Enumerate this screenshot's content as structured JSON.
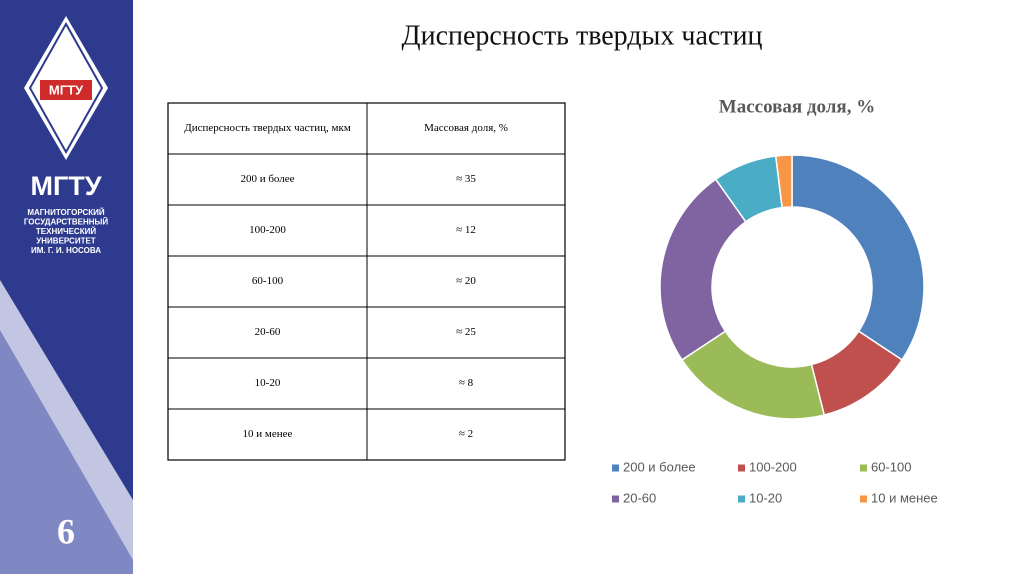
{
  "sidebar": {
    "logo_text": "МГТУ",
    "brand": "МГТУ",
    "university": [
      "МАГНИТОГОРСКИЙ",
      "ГОСУДАРСТВЕННЫЙ",
      "ТЕХНИЧЕСКИЙ",
      "УНИВЕРСИТЕТ",
      "ИМ. Г. И. НОСОВА"
    ],
    "page_number": "6"
  },
  "header": {
    "title": "Дисперсность твердых частиц"
  },
  "table": {
    "columns": [
      "Дисперсность твердых частиц, мкм",
      "Массовая доля, %"
    ],
    "rows": [
      [
        "200 и более",
        "≈ 35"
      ],
      [
        "100-200",
        "≈ 12"
      ],
      [
        "60-100",
        "≈ 20"
      ],
      [
        "20-60",
        "≈ 25"
      ],
      [
        "10-20",
        "≈ 8"
      ],
      [
        "10 и менее",
        "≈ 2"
      ]
    ]
  },
  "chart_data": {
    "type": "donut",
    "title": "Массовая доля, %",
    "categories": [
      "200 и более",
      "100-200",
      "60-100",
      "20-60",
      "10-20",
      "10 и менее"
    ],
    "values": [
      35,
      12,
      20,
      25,
      8,
      2
    ],
    "colors": [
      "#4f81bd",
      "#c0504d",
      "#9bbb59",
      "#8064a2",
      "#4bacc6",
      "#f79646"
    ],
    "legend": "bottom"
  }
}
